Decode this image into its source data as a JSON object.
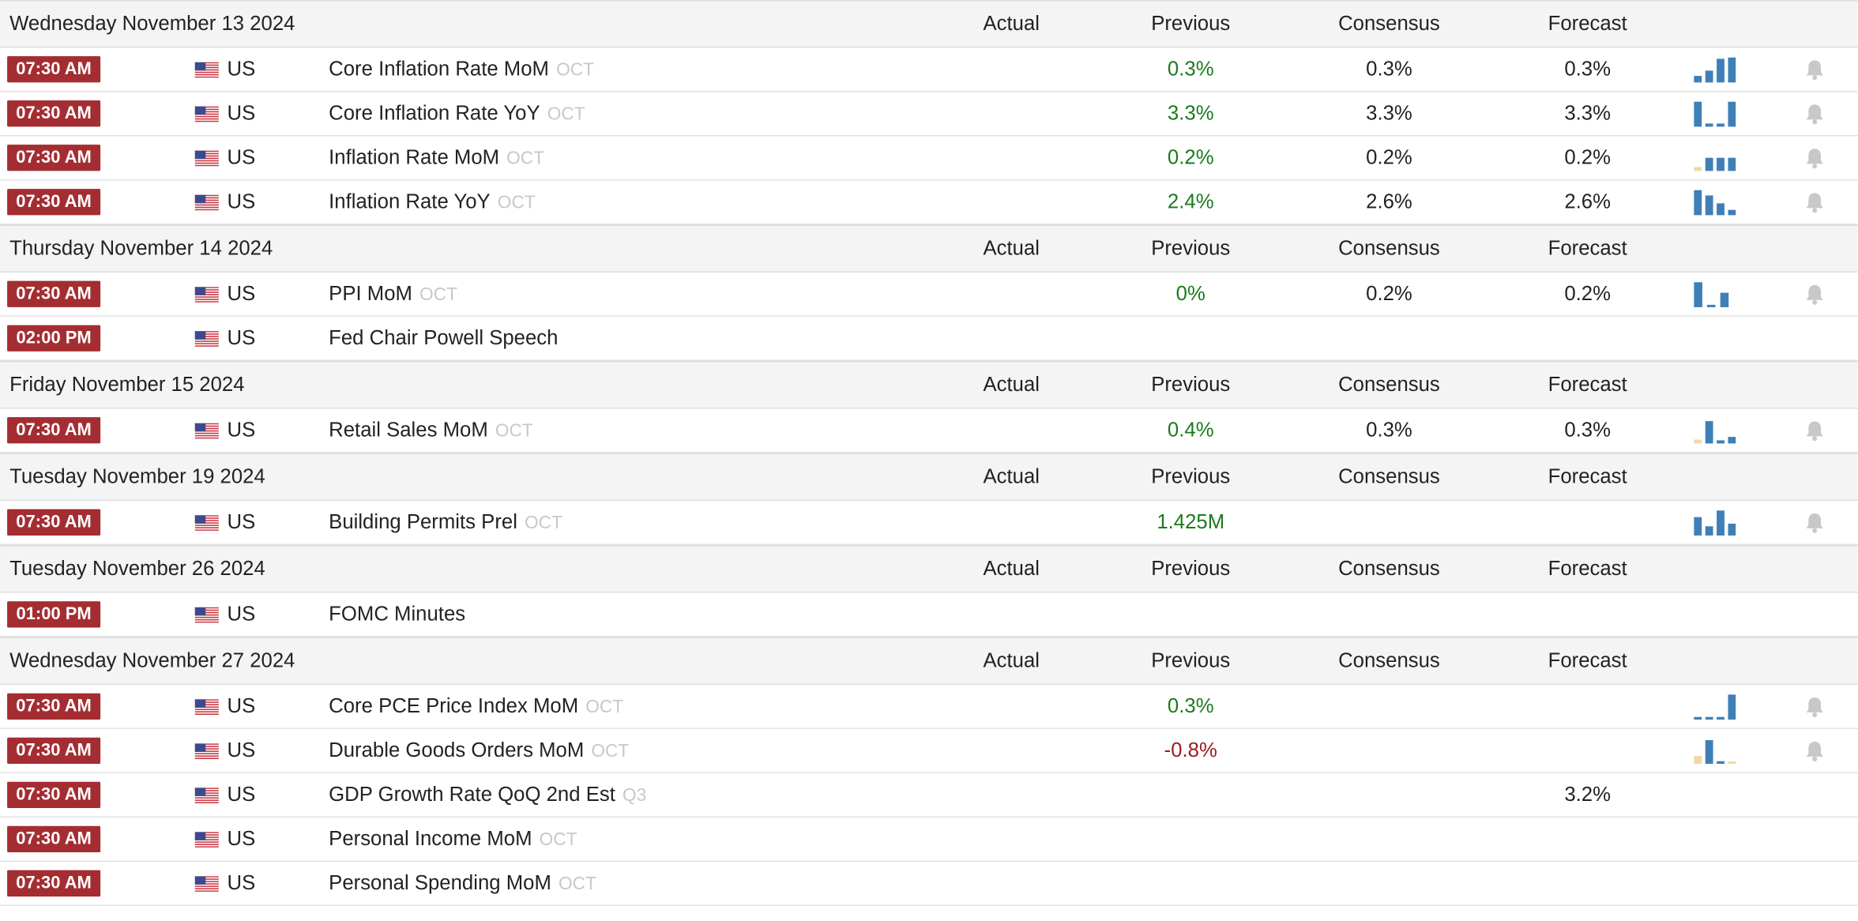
{
  "columns": {
    "actual": "Actual",
    "previous": "Previous",
    "consensus": "Consensus",
    "forecast": "Forecast"
  },
  "colors": {
    "time_badge": "#a42d32",
    "positive": "#1b7a1b",
    "negative": "#9b1b1b",
    "sparkline_bar": "#3f7fb8",
    "sparkline_small": "#f0d9a8",
    "bell": "#c8c8c8"
  },
  "icons": {
    "flag": "us-flag-icon",
    "sparkline": "sparkline-chart-icon",
    "alert": "bell-icon"
  },
  "days": [
    {
      "date": "Wednesday November 13 2024",
      "events": [
        {
          "time": "07:30 AM",
          "country": "US",
          "name": "Core Inflation Rate MoM",
          "ref": "OCT",
          "actual": "",
          "previous": "0.3%",
          "prev_color": "pos",
          "consensus": "0.3%",
          "forecast": "0.3%",
          "spark": [
            0.25,
            0.45,
            0.9,
            0.95
          ],
          "spark_small": [],
          "bell": true
        },
        {
          "time": "07:30 AM",
          "country": "US",
          "name": "Core Inflation Rate YoY",
          "ref": "OCT",
          "actual": "",
          "previous": "3.3%",
          "prev_color": "pos",
          "consensus": "3.3%",
          "forecast": "3.3%",
          "spark": [
            0.95,
            0.12,
            0.12,
            0.95
          ],
          "spark_small": [],
          "bell": true
        },
        {
          "time": "07:30 AM",
          "country": "US",
          "name": "Inflation Rate MoM",
          "ref": "OCT",
          "actual": "",
          "previous": "0.2%",
          "prev_color": "pos",
          "consensus": "0.2%",
          "forecast": "0.2%",
          "spark": [
            0.15,
            0.5,
            0.5,
            0.5
          ],
          "spark_small": [
            0
          ],
          "bell": true
        },
        {
          "time": "07:30 AM",
          "country": "US",
          "name": "Inflation Rate YoY",
          "ref": "OCT",
          "actual": "",
          "previous": "2.4%",
          "prev_color": "pos",
          "consensus": "2.6%",
          "forecast": "2.6%",
          "spark": [
            0.95,
            0.75,
            0.45,
            0.2
          ],
          "spark_small": [],
          "bell": true
        }
      ]
    },
    {
      "date": "Thursday November 14 2024",
      "events": [
        {
          "time": "07:30 AM",
          "country": "US",
          "name": "PPI MoM",
          "ref": "OCT",
          "actual": "",
          "previous": "0%",
          "prev_color": "pos",
          "consensus": "0.2%",
          "forecast": "0.2%",
          "spark": [
            0.95,
            0.0,
            0.55
          ],
          "spark_small": [],
          "bell": true
        },
        {
          "time": "02:00 PM",
          "country": "US",
          "name": "Fed Chair Powell Speech",
          "ref": "",
          "actual": "",
          "previous": "",
          "prev_color": "neutral",
          "consensus": "",
          "forecast": "",
          "spark": [],
          "spark_small": [],
          "bell": false
        }
      ]
    },
    {
      "date": "Friday November 15 2024",
      "events": [
        {
          "time": "07:30 AM",
          "country": "US",
          "name": "Retail Sales MoM",
          "ref": "OCT",
          "actual": "",
          "previous": "0.4%",
          "prev_color": "pos",
          "consensus": "0.3%",
          "forecast": "0.3%",
          "spark": [
            0.15,
            0.85,
            0.12,
            0.25
          ],
          "spark_small": [
            0
          ],
          "bell": true
        }
      ]
    },
    {
      "date": "Tuesday November 19 2024",
      "events": [
        {
          "time": "07:30 AM",
          "country": "US",
          "name": "Building Permits Prel",
          "ref": "OCT",
          "actual": "",
          "previous": "1.425M",
          "prev_color": "pos",
          "consensus": "",
          "forecast": "",
          "spark": [
            0.7,
            0.35,
            0.95,
            0.45
          ],
          "spark_small": [],
          "bell": true
        }
      ]
    },
    {
      "date": "Tuesday November 26 2024",
      "events": [
        {
          "time": "01:00 PM",
          "country": "US",
          "name": "FOMC Minutes",
          "ref": "",
          "actual": "",
          "previous": "",
          "prev_color": "neutral",
          "consensus": "",
          "forecast": "",
          "spark": [],
          "spark_small": [],
          "bell": false
        }
      ]
    },
    {
      "date": "Wednesday November 27 2024",
      "events": [
        {
          "time": "07:30 AM",
          "country": "US",
          "name": "Core PCE Price Index MoM",
          "ref": "OCT",
          "actual": "",
          "previous": "0.3%",
          "prev_color": "pos",
          "consensus": "",
          "forecast": "",
          "spark": [
            0.1,
            0.1,
            0.1,
            0.95
          ],
          "spark_small": [],
          "bell": true
        },
        {
          "time": "07:30 AM",
          "country": "US",
          "name": "Durable Goods Orders MoM",
          "ref": "OCT",
          "actual": "",
          "previous": "-0.8%",
          "prev_color": "neg",
          "consensus": "",
          "forecast": "",
          "spark": [
            0.3,
            0.9,
            0.1,
            0.08
          ],
          "spark_small": [
            0,
            3
          ],
          "bell": true
        },
        {
          "time": "07:30 AM",
          "country": "US",
          "name": "GDP Growth Rate QoQ 2nd Est",
          "ref": "Q3",
          "actual": "",
          "previous": "",
          "prev_color": "neutral",
          "consensus": "",
          "forecast": "3.2%",
          "spark": [],
          "spark_small": [],
          "bell": false
        },
        {
          "time": "07:30 AM",
          "country": "US",
          "name": "Personal Income MoM",
          "ref": "OCT",
          "actual": "",
          "previous": "",
          "prev_color": "neutral",
          "consensus": "",
          "forecast": "",
          "spark": [],
          "spark_small": [],
          "bell": false
        },
        {
          "time": "07:30 AM",
          "country": "US",
          "name": "Personal Spending MoM",
          "ref": "OCT",
          "actual": "",
          "previous": "",
          "prev_color": "neutral",
          "consensus": "",
          "forecast": "",
          "spark": [],
          "spark_small": [],
          "bell": false
        }
      ]
    }
  ]
}
